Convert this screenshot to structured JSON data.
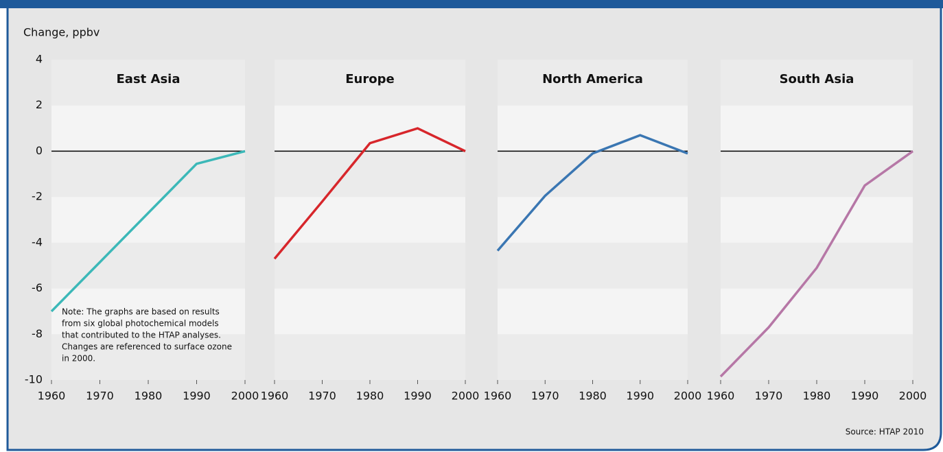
{
  "y_label": "Change, ppbv",
  "note": [
    "Note: The graphs are based on results",
    "from six global photochemical models",
    "that contributed to the HTAP analyses.",
    "Changes are referenced to surface ozone",
    "in 2000."
  ],
  "source": "Source: HTAP 2010",
  "chart_data": [
    {
      "type": "line",
      "title": "East Asia",
      "x": [
        1960,
        1970,
        1980,
        1990,
        2000
      ],
      "values": [
        -7.0,
        -4.85,
        -2.7,
        -0.55,
        0
      ],
      "color": "#3cb8b8",
      "xlim": [
        1960,
        2000
      ],
      "xticks": [
        1960,
        1970,
        1980,
        1990,
        2000
      ],
      "ylim": [
        -10,
        4
      ],
      "yticks": [
        -10,
        -8,
        -6,
        -4,
        -2,
        0,
        2,
        4
      ]
    },
    {
      "type": "line",
      "title": "Europe",
      "x": [
        1960,
        1970,
        1980,
        1990,
        2000
      ],
      "values": [
        -4.7,
        -2.2,
        0.35,
        1.0,
        0
      ],
      "color": "#d7262b",
      "xlim": [
        1960,
        2000
      ],
      "xticks": [
        1960,
        1970,
        1980,
        1990,
        2000
      ],
      "ylim": [
        -10,
        4
      ]
    },
    {
      "type": "line",
      "title": "North America",
      "x": [
        1960,
        1970,
        1980,
        1990,
        2000
      ],
      "values": [
        -4.35,
        -1.95,
        -0.1,
        0.7,
        -0.1
      ],
      "color": "#3a76b2",
      "xlim": [
        1960,
        2000
      ],
      "xticks": [
        1960,
        1970,
        1980,
        1990,
        2000
      ],
      "ylim": [
        -10,
        4
      ]
    },
    {
      "type": "line",
      "title": "South Asia",
      "x": [
        1960,
        1970,
        1980,
        1990,
        2000
      ],
      "values": [
        -9.85,
        -7.7,
        -5.1,
        -1.5,
        0
      ],
      "color": "#b677a6",
      "xlim": [
        1960,
        2000
      ],
      "xticks": [
        1960,
        1970,
        1980,
        1990,
        2000
      ],
      "ylim": [
        -10,
        4
      ]
    }
  ]
}
